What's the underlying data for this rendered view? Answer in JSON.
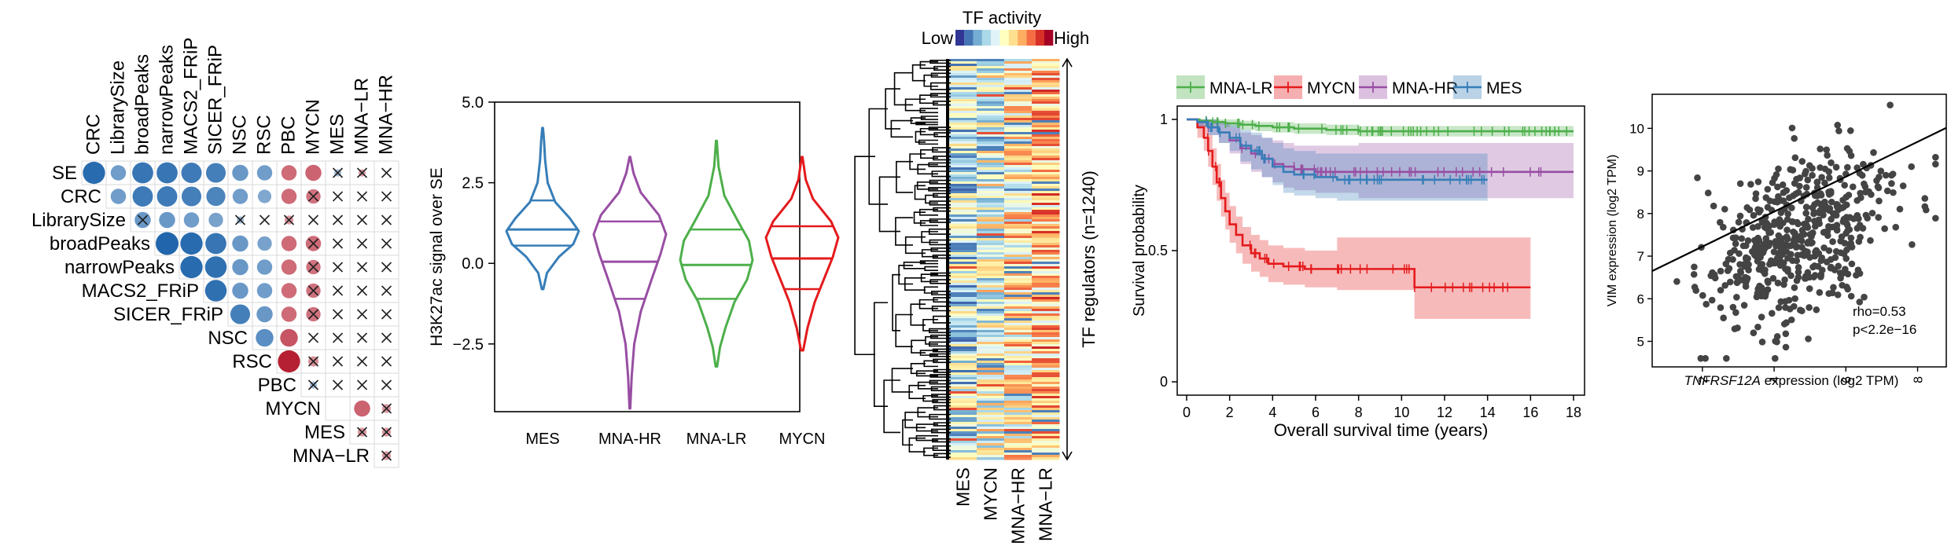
{
  "chart_data": [
    {
      "type": "heatmap",
      "rows": [
        "SE",
        "CRC",
        "LibrarySize",
        "broadPeaks",
        "narrowPeaks",
        "MACS2_FRiP",
        "SICER_FRiP",
        "NSC",
        "RSC",
        "PBC",
        "MYCN",
        "MES",
        "MNA−LR"
      ],
      "columns": [
        "CRC",
        "LibrarySize",
        "broadPeaks",
        "narrowPeaks",
        "MACS2_FRiP",
        "SICER_FRiP",
        "NSC",
        "RSC",
        "PBC",
        "MYCN",
        "MES",
        "MNA−LR",
        "MNA−HR"
      ],
      "values": [
        [
          0.95,
          0.45,
          0.85,
          0.85,
          0.8,
          0.75,
          0.5,
          0.45,
          -0.45,
          -0.5,
          0.1,
          -0.1,
          0.0
        ],
        [
          null,
          0.45,
          0.8,
          0.8,
          0.75,
          0.7,
          0.45,
          0.35,
          -0.45,
          -0.4,
          0.05,
          -0.05,
          0.05
        ],
        [
          null,
          null,
          0.5,
          0.5,
          0.45,
          0.4,
          0.1,
          0.05,
          -0.15,
          0.0,
          0.05,
          -0.05,
          0.0
        ],
        [
          null,
          null,
          null,
          1.0,
          0.95,
          0.85,
          0.5,
          0.4,
          -0.45,
          -0.45,
          0.05,
          0.0,
          0.05
        ],
        [
          null,
          null,
          null,
          null,
          0.95,
          0.9,
          0.5,
          0.45,
          -0.45,
          -0.4,
          0.05,
          0.05,
          0.0
        ],
        [
          null,
          null,
          null,
          null,
          null,
          0.9,
          0.5,
          0.45,
          -0.45,
          -0.4,
          0.05,
          0.0,
          0.05
        ],
        [
          null,
          null,
          null,
          null,
          null,
          null,
          0.75,
          0.5,
          -0.45,
          -0.4,
          0.05,
          0.05,
          0.0
        ],
        [
          null,
          null,
          null,
          null,
          null,
          null,
          null,
          0.6,
          -0.6,
          0.05,
          0.05,
          0.05,
          0.0
        ],
        [
          null,
          null,
          null,
          null,
          null,
          null,
          null,
          null,
          -0.95,
          -0.2,
          0.05,
          0.05,
          0.05
        ],
        [
          null,
          null,
          null,
          null,
          null,
          null,
          null,
          null,
          null,
          0.1,
          0.05,
          0.0,
          0.05
        ],
        [
          null,
          null,
          null,
          null,
          null,
          null,
          null,
          null,
          null,
          null,
          0.05,
          -0.5,
          -0.15
        ],
        [
          null,
          null,
          null,
          null,
          null,
          null,
          null,
          null,
          null,
          null,
          null,
          -0.15,
          -0.15
        ],
        [
          null,
          null,
          null,
          null,
          null,
          null,
          null,
          null,
          null,
          null,
          null,
          null,
          -0.15
        ]
      ],
      "crossed": [
        [
          false,
          false,
          false,
          false,
          false,
          false,
          false,
          false,
          false,
          false,
          true,
          true,
          true
        ],
        [
          false,
          false,
          false,
          false,
          false,
          false,
          false,
          false,
          false,
          true,
          true,
          true,
          true
        ],
        [
          false,
          false,
          true,
          false,
          false,
          false,
          true,
          true,
          true,
          true,
          true,
          true,
          true
        ],
        [
          false,
          false,
          false,
          false,
          false,
          false,
          false,
          false,
          false,
          true,
          true,
          true,
          true
        ],
        [
          false,
          false,
          false,
          false,
          false,
          false,
          false,
          false,
          false,
          true,
          true,
          true,
          true
        ],
        [
          false,
          false,
          false,
          false,
          false,
          false,
          false,
          false,
          false,
          true,
          true,
          true,
          true
        ],
        [
          false,
          false,
          false,
          false,
          false,
          false,
          false,
          false,
          false,
          true,
          true,
          true,
          true
        ],
        [
          false,
          false,
          false,
          false,
          false,
          false,
          false,
          false,
          false,
          true,
          true,
          true,
          true
        ],
        [
          false,
          false,
          false,
          false,
          false,
          false,
          false,
          false,
          false,
          true,
          true,
          true,
          true
        ],
        [
          false,
          false,
          false,
          false,
          false,
          false,
          false,
          false,
          false,
          true,
          true,
          true,
          true
        ],
        [
          false,
          false,
          false,
          false,
          false,
          false,
          false,
          false,
          false,
          false,
          false,
          false,
          true
        ],
        [
          false,
          false,
          false,
          false,
          false,
          false,
          false,
          false,
          false,
          false,
          false,
          true,
          true
        ],
        [
          false,
          false,
          false,
          false,
          false,
          false,
          false,
          false,
          false,
          false,
          false,
          false,
          true
        ]
      ],
      "colors": {
        "positive": "#2166ac",
        "negative": "#b2182b",
        "cross": "#222222"
      }
    },
    {
      "type": "violin",
      "categories": [
        "MES",
        "MNA-HR",
        "MNA-LR",
        "MYCN"
      ],
      "colors": [
        "#377eb8",
        "#984ea3",
        "#4daf4a",
        "#e41a1c"
      ],
      "ylabel": "H3K27ac signal over SE",
      "ylim": [
        -4.6,
        5.0
      ],
      "yticks": [
        5.0,
        2.5,
        0.0,
        -2.5
      ],
      "ytick_labels": [
        "5.0",
        "2.5",
        "0.0",
        "−2.5"
      ],
      "distributions": [
        {
          "min": -0.8,
          "q1": 0.55,
          "median": 1.05,
          "q3": 1.95,
          "max": 4.2,
          "profile": [
            [
              -0.8,
              0.02
            ],
            [
              -0.3,
              0.12
            ],
            [
              0.2,
              0.45
            ],
            [
              0.6,
              0.85
            ],
            [
              1.0,
              1.0
            ],
            [
              1.4,
              0.75
            ],
            [
              1.9,
              0.35
            ],
            [
              2.5,
              0.14
            ],
            [
              3.2,
              0.07
            ],
            [
              3.8,
              0.04
            ],
            [
              4.2,
              0.01
            ]
          ]
        },
        {
          "min": -4.5,
          "q1": -1.1,
          "median": 0.05,
          "q3": 1.3,
          "max": 3.3,
          "profile": [
            [
              -4.5,
              0.01
            ],
            [
              -3.5,
              0.05
            ],
            [
              -2.5,
              0.12
            ],
            [
              -1.5,
              0.3
            ],
            [
              -0.5,
              0.6
            ],
            [
              0.3,
              0.85
            ],
            [
              0.9,
              1.0
            ],
            [
              1.5,
              0.8
            ],
            [
              2.2,
              0.3
            ],
            [
              2.8,
              0.1
            ],
            [
              3.3,
              0.01
            ]
          ]
        },
        {
          "min": -3.2,
          "q1": -1.1,
          "median": -0.05,
          "q3": 1.05,
          "max": 3.8,
          "profile": [
            [
              -3.2,
              0.02
            ],
            [
              -2.6,
              0.1
            ],
            [
              -2.0,
              0.25
            ],
            [
              -1.2,
              0.5
            ],
            [
              -0.5,
              0.85
            ],
            [
              0.1,
              1.0
            ],
            [
              0.7,
              0.9
            ],
            [
              1.3,
              0.6
            ],
            [
              2.1,
              0.22
            ],
            [
              3.0,
              0.06
            ],
            [
              3.8,
              0.01
            ]
          ]
        },
        {
          "min": -2.7,
          "q1": -0.8,
          "median": 0.15,
          "q3": 1.15,
          "max": 3.3,
          "profile": [
            [
              -2.7,
              0.03
            ],
            [
              -2.0,
              0.15
            ],
            [
              -1.2,
              0.35
            ],
            [
              -0.5,
              0.6
            ],
            [
              0.2,
              0.85
            ],
            [
              0.8,
              1.0
            ],
            [
              1.3,
              0.8
            ],
            [
              2.0,
              0.3
            ],
            [
              2.6,
              0.1
            ],
            [
              3.0,
              0.05
            ],
            [
              3.3,
              0.01
            ]
          ]
        }
      ]
    },
    {
      "type": "heatmap",
      "title": "TF activity",
      "legend_low": "Low",
      "legend_high": "High",
      "columns": [
        "MES",
        "MYCN",
        "MNA−HR",
        "MNA−LR"
      ],
      "ylabel": "TF regulators (n=1240)",
      "colorscale": [
        "#313695",
        "#4575b4",
        "#74add1",
        "#abd9e9",
        "#e0f3f8",
        "#ffffbf",
        "#fee090",
        "#fdae61",
        "#f46d43",
        "#d73027",
        "#a50026"
      ]
    },
    {
      "type": "line",
      "legend": [
        "MNA-LR",
        "MYCN",
        "MNA-HR",
        "MES"
      ],
      "colors": [
        "#4daf4a",
        "#e41a1c",
        "#984ea3",
        "#377eb8"
      ],
      "xlabel": "Overall survival time (years)",
      "ylabel": "Survival probability",
      "xlim": [
        0,
        18
      ],
      "ylim": [
        0,
        1
      ],
      "xticks": [
        0,
        2,
        4,
        6,
        8,
        10,
        12,
        14,
        16,
        18
      ],
      "yticks": [
        0,
        0.5,
        1
      ],
      "ytick_labels": [
        "0",
        "0.5",
        "1"
      ],
      "series": [
        {
          "name": "MNA-LR",
          "x": [
            0,
            0.6,
            1.2,
            1.8,
            2.5,
            3.2,
            4.0,
            5.0,
            6.5,
            8.0,
            18
          ],
          "y": [
            1,
            0.995,
            0.99,
            0.985,
            0.98,
            0.975,
            0.97,
            0.965,
            0.96,
            0.955,
            0.955
          ],
          "lower": [
            1,
            0.99,
            0.98,
            0.97,
            0.96,
            0.955,
            0.95,
            0.945,
            0.94,
            0.935,
            0.93
          ],
          "upper": [
            1,
            1,
            1,
            1,
            0.995,
            0.99,
            0.99,
            0.985,
            0.98,
            0.975,
            0.975
          ]
        },
        {
          "name": "MYCN",
          "x": [
            0,
            0.5,
            0.8,
            1.0,
            1.2,
            1.4,
            1.6,
            1.8,
            2.0,
            2.3,
            2.6,
            3.0,
            3.4,
            3.8,
            4.5,
            5.5,
            7.0,
            10.4,
            10.6,
            16
          ],
          "y": [
            1,
            0.97,
            0.93,
            0.88,
            0.82,
            0.76,
            0.7,
            0.65,
            0.6,
            0.56,
            0.52,
            0.49,
            0.47,
            0.45,
            0.44,
            0.43,
            0.43,
            0.43,
            0.36,
            0.36
          ],
          "lower": [
            1,
            0.93,
            0.88,
            0.82,
            0.75,
            0.69,
            0.63,
            0.58,
            0.53,
            0.49,
            0.45,
            0.42,
            0.4,
            0.38,
            0.37,
            0.36,
            0.35,
            0.35,
            0.24,
            0.24
          ],
          "upper": [
            1,
            1,
            0.98,
            0.94,
            0.89,
            0.83,
            0.77,
            0.72,
            0.67,
            0.63,
            0.59,
            0.56,
            0.54,
            0.52,
            0.51,
            0.5,
            0.55,
            0.55,
            0.55,
            0.55
          ]
        },
        {
          "name": "MNA-HR",
          "x": [
            0,
            0.5,
            1.0,
            1.5,
            2.0,
            2.5,
            3.0,
            3.5,
            4.0,
            4.5,
            5.0,
            6.0,
            8.0,
            18
          ],
          "y": [
            1,
            0.99,
            0.97,
            0.95,
            0.92,
            0.89,
            0.87,
            0.85,
            0.83,
            0.82,
            0.81,
            0.8,
            0.8,
            0.8
          ],
          "lower": [
            1,
            0.97,
            0.94,
            0.91,
            0.87,
            0.83,
            0.8,
            0.78,
            0.76,
            0.74,
            0.73,
            0.72,
            0.7,
            0.66
          ],
          "upper": [
            1,
            1,
            1,
            0.99,
            0.97,
            0.95,
            0.94,
            0.93,
            0.92,
            0.91,
            0.9,
            0.9,
            0.91,
            0.93
          ]
        },
        {
          "name": "MES",
          "x": [
            0,
            0.5,
            1.0,
            1.5,
            2.0,
            2.5,
            3.0,
            3.5,
            4.0,
            4.5,
            5.0,
            6.0,
            7.0,
            14
          ],
          "y": [
            1,
            0.99,
            0.97,
            0.95,
            0.93,
            0.9,
            0.88,
            0.85,
            0.82,
            0.8,
            0.79,
            0.78,
            0.77,
            0.77
          ],
          "lower": [
            1,
            0.97,
            0.94,
            0.91,
            0.88,
            0.84,
            0.81,
            0.78,
            0.75,
            0.72,
            0.71,
            0.7,
            0.69,
            0.66
          ],
          "upper": [
            1,
            1,
            1,
            0.99,
            0.98,
            0.96,
            0.95,
            0.93,
            0.91,
            0.89,
            0.88,
            0.87,
            0.87,
            0.92
          ]
        }
      ]
    },
    {
      "type": "scatter",
      "xlabel_italic": "TNFRSF12A",
      "xlabel_rest": " expression (log2 TPM)",
      "ylabel": "VIM expression (log2 TPM)",
      "xlim": [
        0.6,
        8.8
      ],
      "ylim": [
        4.4,
        10.8
      ],
      "xticks": [
        2,
        4,
        6,
        8
      ],
      "yticks": [
        5,
        6,
        7,
        8,
        9,
        10
      ],
      "annotation": [
        "rho=0.53",
        "p<2.2e−16"
      ],
      "fit": {
        "slope": 0.41,
        "intercept": 6.25
      },
      "n_points": 520,
      "point_color": "#444444"
    }
  ]
}
